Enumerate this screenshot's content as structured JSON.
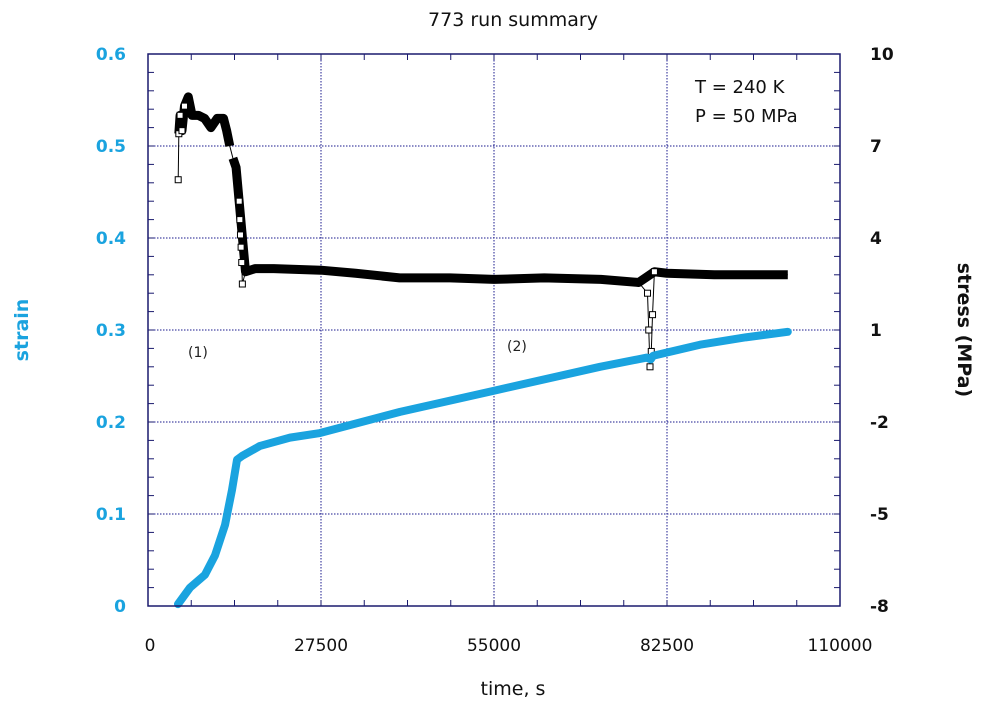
{
  "chart_data": {
    "type": "line",
    "title": "773 run summary",
    "xlabel": "time, s",
    "ylabel": "strain",
    "ylabel_right": "stress (MPa)",
    "xlim": [
      0,
      110000
    ],
    "ylim": [
      0,
      0.6
    ],
    "ylim_right": [
      -8,
      10
    ],
    "x_ticks": [
      "0",
      "27500",
      "55000",
      "82500",
      "110000"
    ],
    "y_ticks": [
      "0",
      "0.1",
      "0.2",
      "0.3",
      "0.4",
      "0.5",
      "0.6"
    ],
    "y_ticks_right": [
      "-8",
      "-5",
      "-2",
      "1",
      "4",
      "7",
      "10"
    ],
    "grid": true,
    "annotations": [
      "T = 240 K",
      "P = 50 MPa"
    ],
    "region_labels": [
      "(1)",
      "(2)"
    ],
    "colors": {
      "strain": "#1aa3df",
      "stress": "#000000",
      "axes": "#1a1a6e",
      "grid": "#1a1a8e"
    },
    "series": [
      {
        "name": "strain",
        "axis": "left",
        "x": [
          4770,
          6680,
          9060,
          10650,
          12240,
          13350,
          14150,
          14940,
          17800,
          22570,
          27340,
          40060,
          55000,
          71850,
          79300,
          79900,
          80300,
          87750,
          95000,
          101700
        ],
        "values": [
          0.002,
          0.02,
          0.034,
          0.055,
          0.088,
          0.126,
          0.159,
          0.163,
          0.174,
          0.183,
          0.188,
          0.211,
          0.234,
          0.26,
          0.27,
          0.268,
          0.272,
          0.284,
          0.292,
          0.298
        ]
      },
      {
        "name": "stress",
        "axis": "right",
        "x": [
          4800,
          4900,
          5100,
          5400,
          5800,
          6400,
          7000,
          8000,
          9000,
          10000,
          11000,
          12000,
          12500,
          13000,
          13500,
          14000,
          14500,
          14600,
          14700,
          14800,
          14900,
          15000,
          15500,
          17000,
          20000,
          27500,
          33000,
          40000,
          48000,
          55000,
          63000,
          72000,
          78000,
          79400,
          79600,
          79800,
          80000,
          80200,
          80500,
          82500,
          90000,
          101700
        ],
        "values": [
          5.9,
          7.4,
          8.0,
          7.5,
          8.3,
          8.6,
          8.0,
          8.0,
          7.9,
          7.6,
          7.9,
          7.9,
          7.5,
          7.0,
          6.6,
          6.3,
          5.2,
          4.6,
          4.1,
          3.7,
          3.2,
          2.5,
          2.9,
          3.0,
          3.0,
          2.95,
          2.85,
          2.7,
          2.7,
          2.65,
          2.7,
          2.65,
          2.55,
          2.2,
          1.0,
          -0.2,
          0.3,
          1.5,
          2.9,
          2.85,
          2.8,
          2.8
        ]
      }
    ]
  }
}
